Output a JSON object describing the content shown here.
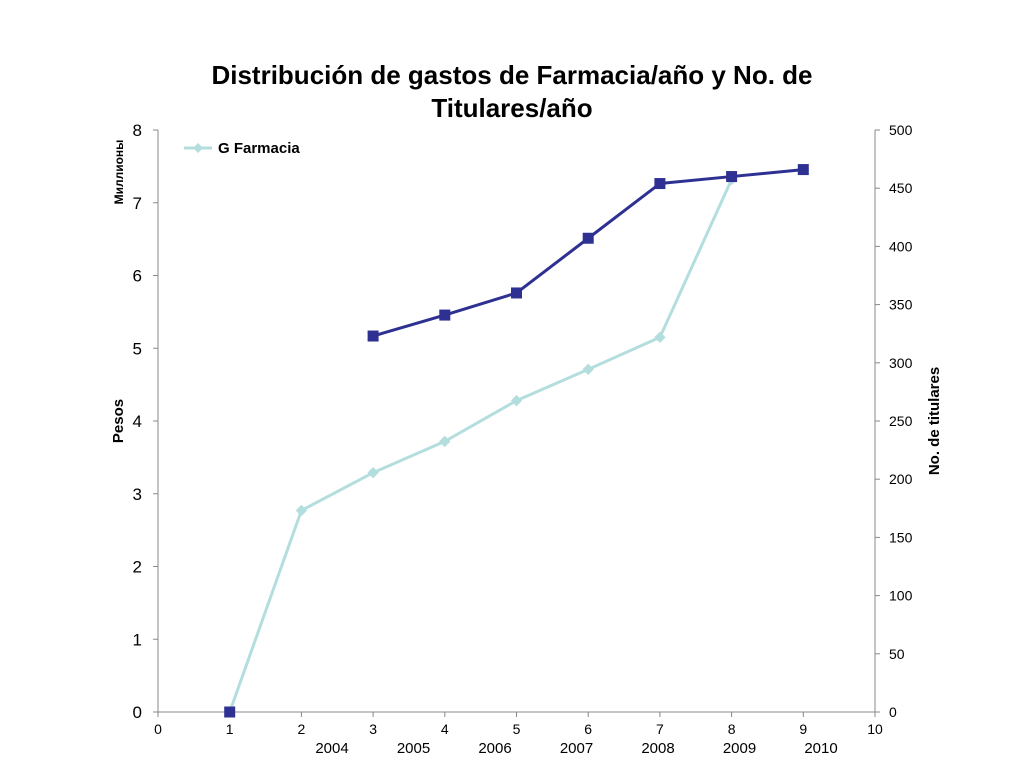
{
  "chart_data": {
    "type": "line",
    "title_line1": "Distribución de gastos de Farmacia/año y No. de",
    "title_line2": "Titulares/año",
    "y_unit_label": "Миллионы",
    "ylabel": "Pesos",
    "y2label": "No. de titulares",
    "xlim": [
      0,
      10
    ],
    "ylim": [
      0,
      8
    ],
    "y2lim": [
      0,
      500
    ],
    "x_ticks": [
      "0",
      "1",
      "2",
      "3",
      "4",
      "5",
      "6",
      "7",
      "8",
      "9",
      "10"
    ],
    "y_ticks": [
      "0",
      "1",
      "2",
      "3",
      "4",
      "5",
      "6",
      "7",
      "8"
    ],
    "y2_ticks": [
      "0",
      "50",
      "100",
      "150",
      "200",
      "250",
      "300",
      "350",
      "400",
      "450",
      "500"
    ],
    "year_labels": [
      "2004",
      "2005",
      "2006",
      "2007",
      "2008",
      "2009",
      "2010"
    ],
    "legend_position": "top-left",
    "grid": false,
    "series": [
      {
        "name": "G Farmacia",
        "axis": "left",
        "marker": "diamond",
        "color": "#b4dede",
        "x": [
          1,
          2,
          3,
          4,
          5,
          6,
          7,
          8
        ],
        "values": [
          0,
          2.77,
          3.29,
          3.72,
          4.28,
          4.71,
          5.15,
          7.32
        ]
      },
      {
        "axis": "right",
        "marker": "square",
        "color": "#2e3192",
        "x": [
          1,
          3,
          4,
          5,
          6,
          7,
          8,
          9
        ],
        "values": [
          0,
          323,
          341,
          360,
          407,
          454,
          460,
          466
        ]
      }
    ]
  }
}
